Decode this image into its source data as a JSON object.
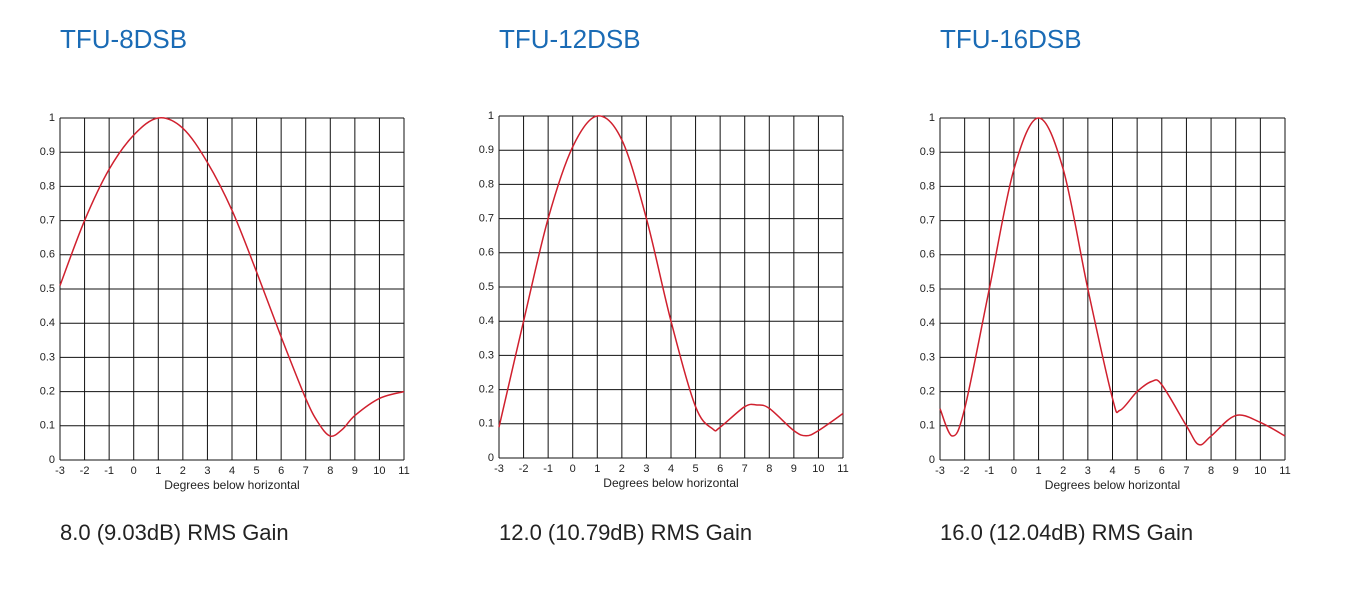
{
  "chart_data": [
    {
      "type": "line",
      "title": "TFU-8DSB",
      "caption": "8.0 (9.03dB) RMS Gain",
      "x_label": "Degrees below horizontal",
      "xlim": [
        -3,
        11
      ],
      "xticks": [
        -3,
        -2,
        -1,
        0,
        1,
        2,
        3,
        4,
        5,
        6,
        7,
        8,
        9,
        10,
        11
      ],
      "ylim": [
        0,
        1
      ],
      "yticks": [
        0,
        0.1,
        0.2,
        0.3,
        0.4,
        0.5,
        0.6,
        0.7,
        0.8,
        0.9,
        1
      ],
      "grid": true,
      "series": [
        {
          "color": "#d0202e",
          "x": [
            -3,
            -2,
            -1,
            0,
            1,
            2,
            3,
            4,
            5,
            6,
            7,
            7.5,
            8,
            8.5,
            9,
            10,
            11
          ],
          "values": [
            0.51,
            0.7,
            0.85,
            0.95,
            1.0,
            0.97,
            0.87,
            0.73,
            0.55,
            0.36,
            0.18,
            0.11,
            0.07,
            0.09,
            0.13,
            0.18,
            0.2
          ]
        }
      ]
    },
    {
      "type": "line",
      "title": "TFU-12DSB",
      "caption": "12.0 (10.79dB) RMS Gain",
      "x_label": "Degrees below horizontal",
      "xlim": [
        -3,
        11
      ],
      "xticks": [
        -3,
        -2,
        -1,
        0,
        1,
        2,
        3,
        4,
        5,
        6,
        7,
        8,
        9,
        10,
        11
      ],
      "ylim": [
        0,
        1
      ],
      "yticks": [
        0,
        0.1,
        0.2,
        0.3,
        0.4,
        0.5,
        0.6,
        0.7,
        0.8,
        0.9,
        1
      ],
      "grid": true,
      "series": [
        {
          "color": "#d0202e",
          "x": [
            -3,
            -2,
            -1,
            0,
            1,
            2,
            3,
            4,
            5,
            5.7,
            6,
            7,
            7.5,
            8,
            9,
            9.5,
            10,
            11
          ],
          "values": [
            0.09,
            0.4,
            0.7,
            0.91,
            1.0,
            0.93,
            0.7,
            0.4,
            0.15,
            0.085,
            0.09,
            0.15,
            0.155,
            0.145,
            0.08,
            0.065,
            0.08,
            0.13
          ]
        }
      ]
    },
    {
      "type": "line",
      "title": "TFU-16DSB",
      "caption": "16.0 (12.04dB) RMS Gain",
      "x_label": "Degrees below horizontal",
      "xlim": [
        -3,
        11
      ],
      "xticks": [
        -3,
        -2,
        -1,
        0,
        1,
        2,
        3,
        4,
        5,
        6,
        7,
        8,
        9,
        10,
        11
      ],
      "ylim": [
        0,
        1
      ],
      "yticks": [
        0,
        0.1,
        0.2,
        0.3,
        0.4,
        0.5,
        0.6,
        0.7,
        0.8,
        0.9,
        1
      ],
      "grid": true,
      "series": [
        {
          "color": "#d0202e",
          "x": [
            -3,
            -2.5,
            -2,
            -1,
            0,
            1,
            2,
            3,
            4,
            4.3,
            5,
            5.6,
            6,
            7,
            7.5,
            8,
            9,
            10,
            11
          ],
          "values": [
            0.15,
            0.07,
            0.15,
            0.5,
            0.85,
            1.0,
            0.85,
            0.5,
            0.18,
            0.145,
            0.2,
            0.23,
            0.22,
            0.1,
            0.045,
            0.07,
            0.13,
            0.11,
            0.07
          ]
        }
      ]
    }
  ]
}
